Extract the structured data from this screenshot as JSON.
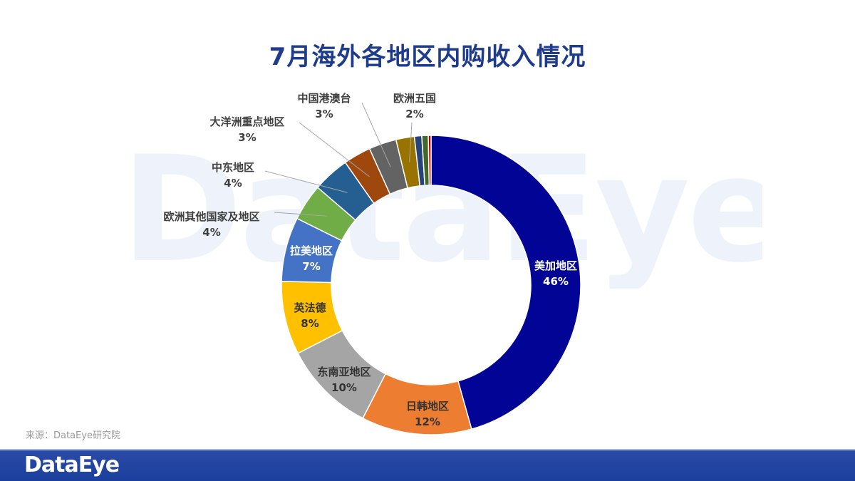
{
  "title": "7月海外各地区内购收入情况",
  "watermark": "DataEye",
  "source": "来源：DataEye研究院",
  "footer_logo": "DataEye",
  "chart_data": {
    "type": "pie",
    "variant": "donut",
    "title": "7月海外各地区内购收入情况",
    "unit": "%",
    "slices": [
      {
        "label": "美加地区",
        "value": 46,
        "display": "46%",
        "color": "#020496"
      },
      {
        "label": "日韩地区",
        "value": 12,
        "display": "12%",
        "color": "#ed7d31"
      },
      {
        "label": "东南亚地区",
        "value": 10,
        "display": "10%",
        "color": "#a5a5a5"
      },
      {
        "label": "英法德",
        "value": 8,
        "display": "8%",
        "color": "#ffc000"
      },
      {
        "label": "拉美地区",
        "value": 7,
        "display": "7%",
        "color": "#4472c4"
      },
      {
        "label": "欧洲其他国家及地区",
        "value": 4,
        "display": "4%",
        "color": "#70ad47"
      },
      {
        "label": "中东地区",
        "value": 4,
        "display": "4%",
        "color": "#255e91"
      },
      {
        "label": "大洋洲重点地区",
        "value": 3,
        "display": "3%",
        "color": "#9e480e"
      },
      {
        "label": "中国港澳台",
        "value": 3,
        "display": "3%",
        "color": "#636363"
      },
      {
        "label": "欧洲五国",
        "value": 2,
        "display": "2%",
        "color": "#997300"
      },
      {
        "label": "",
        "value": 0.8,
        "display": "",
        "color": "#264478"
      },
      {
        "label": "",
        "value": 0.7,
        "display": "",
        "color": "#43682b"
      },
      {
        "label": "",
        "value": 0.3,
        "display": "",
        "color": "#c00000"
      }
    ]
  }
}
